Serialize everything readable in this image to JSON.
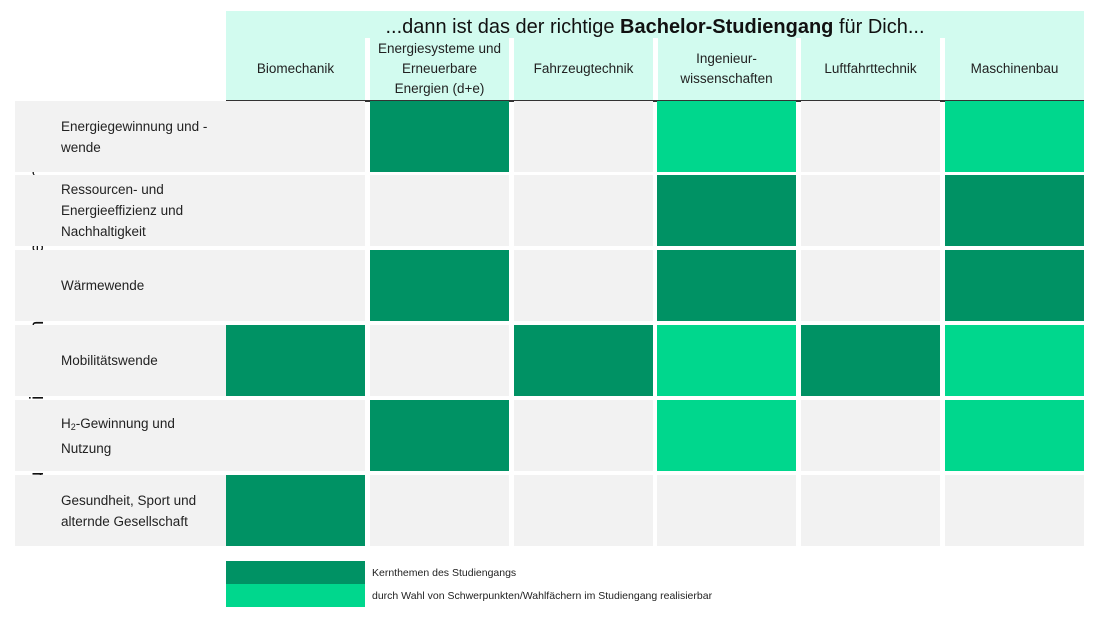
{
  "title": {
    "prefix": "...dann ist das der richtige ",
    "bold": "Bachelor-Studiengang",
    "suffix": " für Dich..."
  },
  "side_label": "Du interessierst Dich für diese Themen...",
  "columns": [
    {
      "label": "Biomechanik"
    },
    {
      "label": "Energiesysteme und Erneuerbare Energien (d+e)"
    },
    {
      "label": "Fahrzeugtechnik"
    },
    {
      "label": "Ingenieur-wissenschaften"
    },
    {
      "label": "Luftfahrttechnik"
    },
    {
      "label": "Maschinenbau"
    }
  ],
  "rows": [
    {
      "label": "Energiegewinnung und -wende",
      "cells": [
        0,
        2,
        0,
        1,
        0,
        1
      ]
    },
    {
      "label": "Ressourcen- und Energieeffizienz und Nachhaltigkeit",
      "cells": [
        0,
        0,
        0,
        2,
        0,
        2
      ]
    },
    {
      "label": "Wärmewende",
      "cells": [
        0,
        2,
        0,
        2,
        0,
        2
      ]
    },
    {
      "label": "Mobilitätswende",
      "cells": [
        2,
        0,
        2,
        1,
        2,
        1
      ]
    },
    {
      "label_pre": "H",
      "label_sub": "2",
      "label_post": "-Gewinnung und Nutzung",
      "cells": [
        0,
        2,
        0,
        1,
        0,
        1
      ]
    },
    {
      "label": "Gesundheit, Sport und alternde Gesellschaft",
      "cells": [
        2,
        0,
        0,
        0,
        0,
        0
      ]
    }
  ],
  "legend": [
    {
      "label": "Kernthemen des Studiengangs",
      "color": "#009264"
    },
    {
      "label": "durch Wahl von Schwerpunkten/Wahlfächern im Studiengang realisierbar",
      "color": "#00d78d"
    }
  ],
  "colors": {
    "core": "#009264",
    "optional": "#00d78d",
    "empty": "#f2f2f2",
    "header": "#d2fbef"
  }
}
